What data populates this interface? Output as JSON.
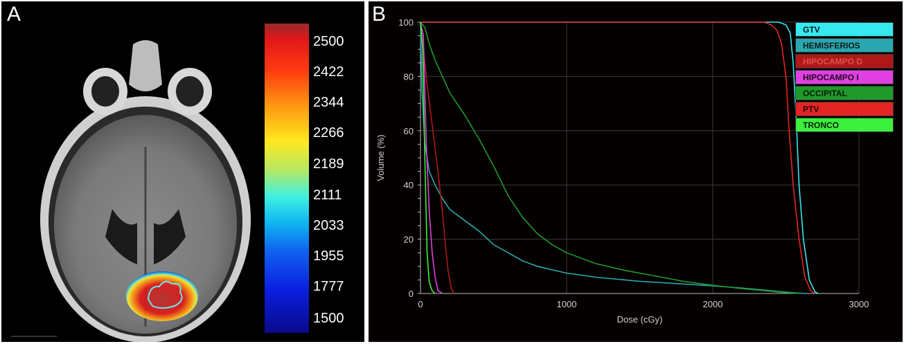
{
  "panel_a": {
    "letter": "A",
    "colorbar": {
      "ticks": [
        "2500",
        "2422",
        "2344",
        "2266",
        "2189",
        "2111",
        "2033",
        "1955",
        "1777",
        "1500"
      ]
    }
  },
  "panel_b": {
    "letter": "B"
  },
  "chart_data": {
    "type": "line",
    "title": "",
    "xlabel": "Dose (cGy)",
    "ylabel": "Volume (%)",
    "xlim": [
      0,
      3000
    ],
    "ylim": [
      0,
      100
    ],
    "xticks": [
      "0",
      "1000",
      "2000",
      "3000"
    ],
    "yticks": [
      "0",
      "20",
      "40",
      "60",
      "80",
      "100"
    ],
    "grid": true,
    "legend_position": "top-right",
    "series": [
      {
        "name": "GTV",
        "color": "#36e8f0",
        "label_color": "#0a1a1a",
        "x": [
          0,
          2450,
          2500,
          2530,
          2550,
          2570,
          2590,
          2620,
          2660,
          2700,
          2720
        ],
        "y": [
          100,
          100,
          99,
          96,
          85,
          65,
          40,
          20,
          5,
          0.5,
          0
        ]
      },
      {
        "name": "HEMISFERIOS",
        "color": "#2aa7ae",
        "label_color": "#0a1a1a",
        "x": [
          0,
          10,
          30,
          60,
          100,
          150,
          200,
          300,
          400,
          500,
          600,
          700,
          800,
          1000,
          1200,
          1500,
          1800,
          2000,
          2200,
          2400,
          2500,
          2600,
          2650
        ],
        "y": [
          100,
          75,
          55,
          45,
          40,
          35,
          31,
          27,
          23,
          18,
          15,
          12,
          10,
          7.5,
          6,
          4.5,
          3.5,
          2.8,
          2,
          1,
          0.5,
          0.1,
          0
        ]
      },
      {
        "name": "HIPOCAMPO D",
        "color": "#b01818",
        "label_color": "#e05050",
        "x": [
          0,
          20,
          50,
          80,
          120,
          150,
          170,
          190,
          210,
          230
        ],
        "y": [
          100,
          90,
          75,
          62,
          45,
          30,
          18,
          8,
          2,
          0
        ]
      },
      {
        "name": "HIPOCAMPO I",
        "color": "#e040e0",
        "label_color": "#1a0a1a",
        "x": [
          0,
          20,
          40,
          60,
          80,
          100,
          120,
          150
        ],
        "y": [
          100,
          95,
          55,
          30,
          15,
          6,
          1,
          0
        ]
      },
      {
        "name": "OCCIPITAL",
        "color": "#1f9a2a",
        "label_color": "#0a1a0a",
        "x": [
          0,
          30,
          60,
          100,
          150,
          200,
          300,
          400,
          500,
          600,
          700,
          800,
          900,
          1000,
          1200,
          1400,
          1600,
          1800,
          2000,
          2200,
          2400,
          2500,
          2600
        ],
        "y": [
          100,
          98,
          92,
          86,
          80,
          74,
          66,
          57,
          47,
          36,
          28,
          22,
          18,
          15,
          11,
          8.5,
          6.5,
          4.5,
          3,
          1.8,
          0.8,
          0.3,
          0
        ]
      },
      {
        "name": "PTV",
        "color": "#e52424",
        "label_color": "#1a0a0a",
        "x": [
          0,
          2350,
          2400,
          2440,
          2470,
          2500,
          2520,
          2550,
          2590,
          2630,
          2670,
          2700
        ],
        "y": [
          100,
          100,
          99,
          97,
          92,
          80,
          62,
          40,
          20,
          6,
          1,
          0
        ]
      },
      {
        "name": "TRONCO",
        "color": "#3cf03c",
        "label_color": "#0a1a0a",
        "x": [
          0,
          15,
          30,
          45,
          60,
          80,
          100
        ],
        "y": [
          100,
          90,
          50,
          15,
          4,
          1,
          0
        ]
      }
    ]
  }
}
